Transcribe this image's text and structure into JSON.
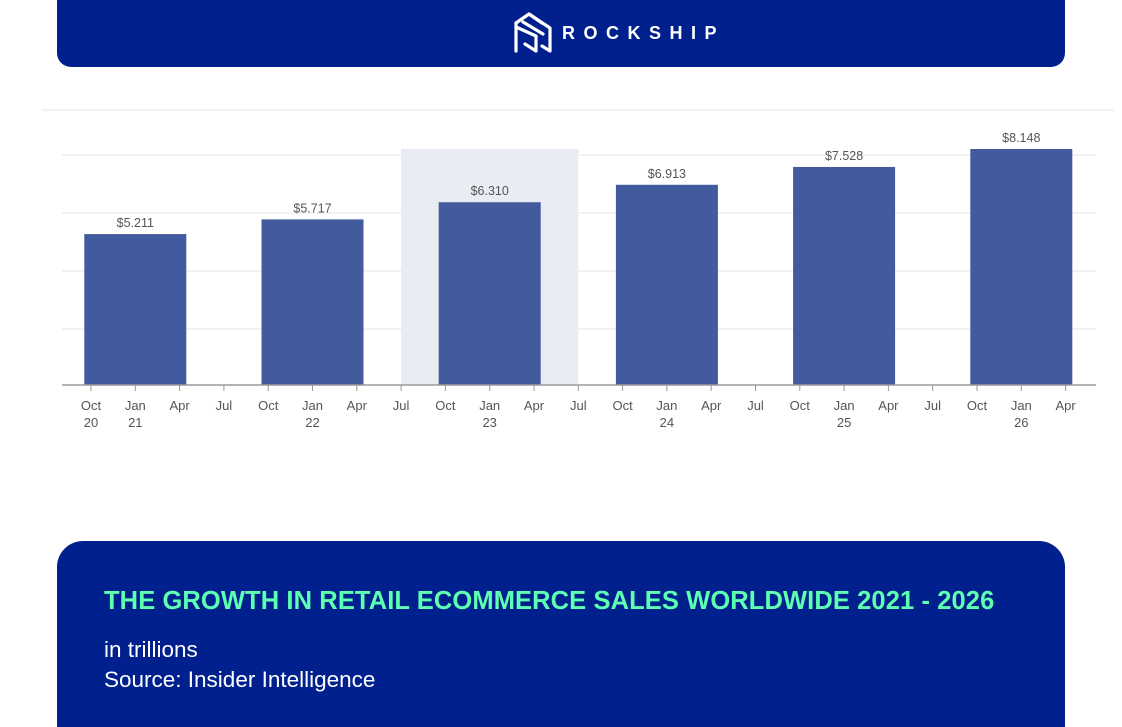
{
  "brand": {
    "name": "ROCKSHIP",
    "logo_icon": "rockship-logo-icon"
  },
  "colors": {
    "brand_navy": "#00208e",
    "title_green": "#5dffb0",
    "bar_fill": "#425a9e",
    "highlight_band": "#eaecf3",
    "grid": "#e6e6e6",
    "axis": "#9a9a9a",
    "label_text": "#555555"
  },
  "chart_data": {
    "type": "bar",
    "categories": [
      "2021",
      "2022",
      "2023",
      "2024",
      "2025",
      "2026"
    ],
    "values": [
      5.211,
      5.717,
      6.31,
      6.913,
      7.528,
      8.148
    ],
    "value_labels": [
      "$5.211",
      "$5.717",
      "$6.310",
      "$6.913",
      "$7.528",
      "$8.148"
    ],
    "highlighted_category": "2023",
    "x_tick_labels": [
      [
        "Oct",
        "20"
      ],
      [
        "Jan",
        "21"
      ],
      [
        "Apr",
        ""
      ],
      [
        "Jul",
        ""
      ],
      [
        "Oct",
        ""
      ],
      [
        "Jan",
        "22"
      ],
      [
        "Apr",
        ""
      ],
      [
        "Jul",
        ""
      ],
      [
        "Oct",
        ""
      ],
      [
        "Jan",
        "23"
      ],
      [
        "Apr",
        ""
      ],
      [
        "Jul",
        ""
      ],
      [
        "Oct",
        ""
      ],
      [
        "Jan",
        "24"
      ],
      [
        "Apr",
        ""
      ],
      [
        "Jul",
        ""
      ],
      [
        "Oct",
        ""
      ],
      [
        "Jan",
        "25"
      ],
      [
        "Apr",
        ""
      ],
      [
        "Jul",
        ""
      ],
      [
        "Oct",
        ""
      ],
      [
        "Jan",
        "26"
      ],
      [
        "Apr",
        ""
      ]
    ],
    "ylim": [
      0,
      8.148
    ],
    "grid": true,
    "legend": false
  },
  "footer": {
    "title": "THE GROWTH IN RETAIL ECOMMERCE SALES WORLDWIDE 2021 - 2026",
    "unit_note": "in trillions",
    "source": "Source: Insider Intelligence"
  }
}
